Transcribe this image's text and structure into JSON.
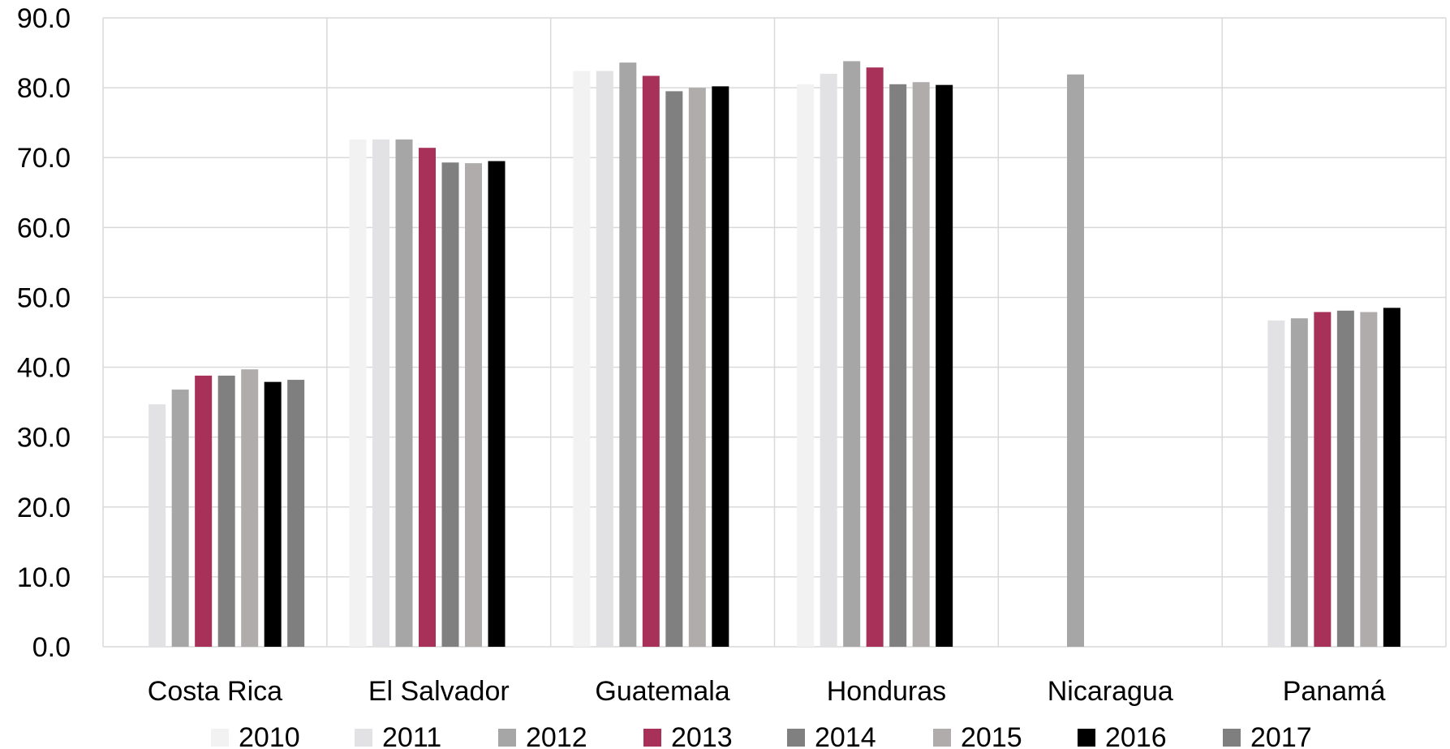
{
  "chart_data": {
    "type": "bar",
    "categories": [
      "Costa Rica",
      "El Salvador",
      "Guatemala",
      "Honduras",
      "Nicaragua",
      "Panamá"
    ],
    "ylim": [
      0,
      90
    ],
    "yticks": [
      "0.0",
      "10.0",
      "20.0",
      "30.0",
      "40.0",
      "50.0",
      "60.0",
      "70.0",
      "80.0",
      "90.0"
    ],
    "grid": true,
    "legend_position": "bottom",
    "series": [
      {
        "name": "2010",
        "color": "#f2f2f2",
        "values": [
          null,
          72.6,
          82.4,
          80.5,
          null,
          null
        ]
      },
      {
        "name": "2011",
        "color": "#e2e2e4",
        "values": [
          34.7,
          72.6,
          82.4,
          82.0,
          null,
          46.7
        ]
      },
      {
        "name": "2012",
        "color": "#a6a6a6",
        "values": [
          36.8,
          72.6,
          83.6,
          83.8,
          81.9,
          47.0
        ]
      },
      {
        "name": "2013",
        "color": "#a8315a",
        "values": [
          38.8,
          71.4,
          81.7,
          82.9,
          null,
          47.9
        ]
      },
      {
        "name": "2014",
        "color": "#808080",
        "values": [
          38.8,
          69.3,
          79.5,
          80.5,
          null,
          48.1
        ]
      },
      {
        "name": "2015",
        "color": "#b0acac",
        "values": [
          39.7,
          69.2,
          80.0,
          80.8,
          null,
          47.9
        ]
      },
      {
        "name": "2016",
        "color": "#000000",
        "values": [
          37.9,
          69.5,
          80.2,
          80.4,
          null,
          48.5
        ]
      },
      {
        "name": "2017",
        "color": "#7f7f7f",
        "values": [
          38.2,
          null,
          null,
          null,
          null,
          null
        ]
      }
    ]
  }
}
